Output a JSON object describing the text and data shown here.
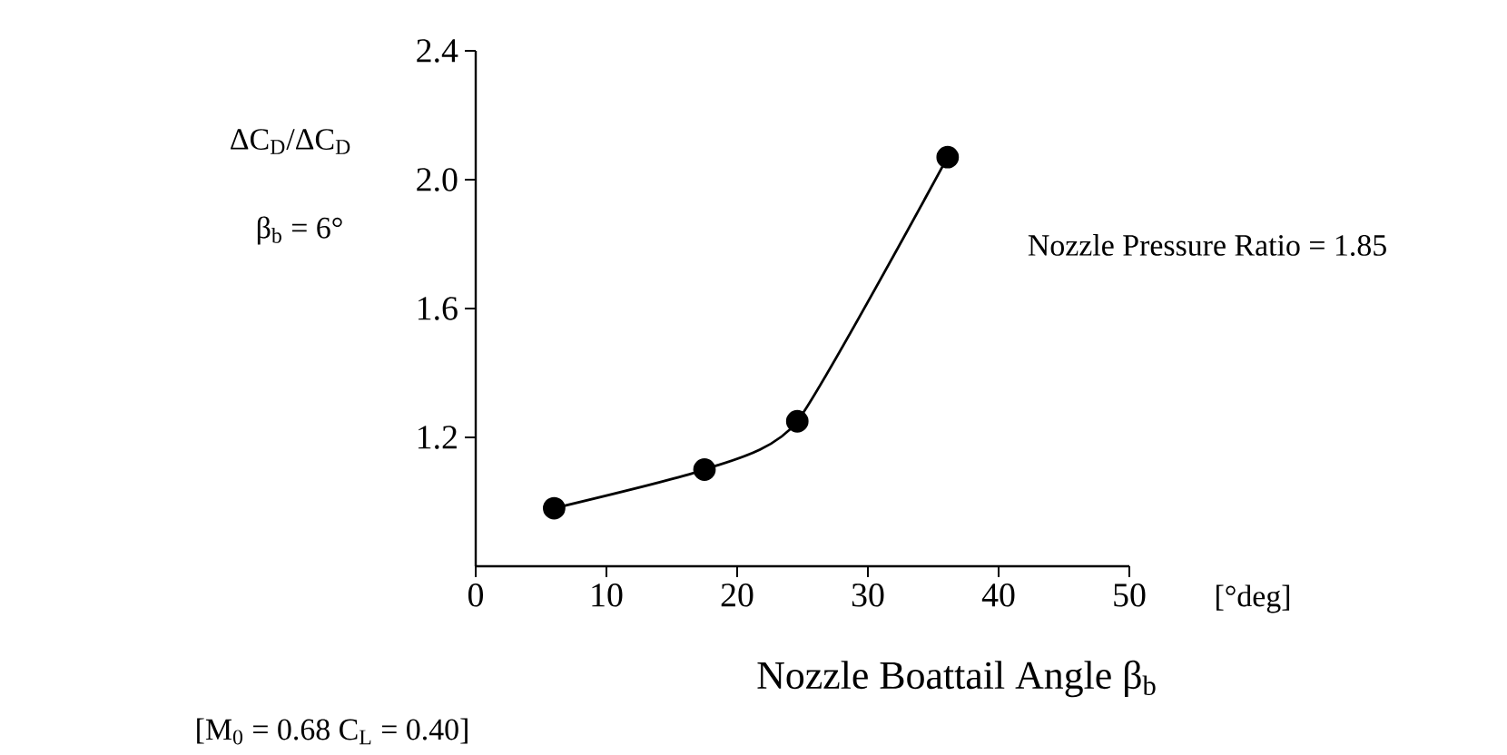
{
  "chart_data": {
    "type": "line",
    "xlabel": "Nozzle Boattail Angle β$_{b}$",
    "ylabel": "ΔC$_{D}$/ΔC$_{D}$",
    "x": [
      6,
      17.5,
      24.6,
      36.1
    ],
    "values": [
      0.98,
      1.1,
      1.25,
      2.07
    ],
    "color": "#000000",
    "marker": "circle",
    "line_style": "solid",
    "xlim": [
      0,
      50
    ],
    "ylim": [
      0.8,
      2.4
    ],
    "xticks": [
      0,
      10,
      20,
      30,
      40,
      50
    ],
    "yticks": [
      1.2,
      1.6,
      {
        "value": 2.0,
        "label": "2.0"
      },
      2.4
    ],
    "annotations": [
      "β$_{b}$ = 6°",
      "Nozzle Pressure Ratio = 1.85",
      "[°deg]",
      "[M$_{0}$ = 0.68  C$_{L}$ = 0.40]"
    ]
  }
}
